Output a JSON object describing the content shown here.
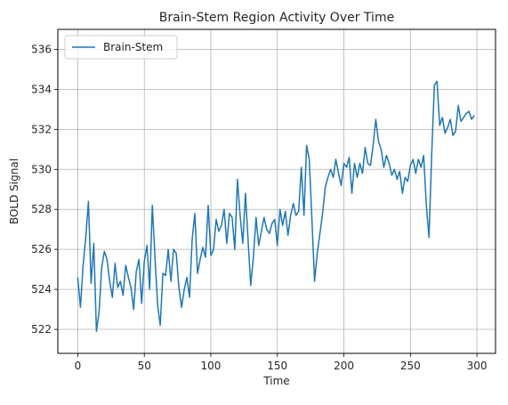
{
  "chart_data": {
    "type": "line",
    "title": "Brain-Stem Region Activity Over Time",
    "xlabel": "Time",
    "ylabel": "BOLD Signal",
    "xlim": [
      -15,
      314
    ],
    "ylim": [
      520.8,
      537.0
    ],
    "xticks": [
      0,
      50,
      100,
      150,
      200,
      250,
      300
    ],
    "yticks": [
      522,
      524,
      526,
      528,
      530,
      532,
      534,
      536
    ],
    "grid": true,
    "legend_position": "top-left",
    "series": [
      {
        "name": "Brain-Stem",
        "color": "#1f77b4",
        "x": [
          0,
          2,
          4,
          6,
          8,
          10,
          12,
          14,
          16,
          18,
          20,
          22,
          24,
          26,
          28,
          30,
          32,
          34,
          36,
          38,
          40,
          42,
          44,
          46,
          48,
          50,
          52,
          54,
          56,
          58,
          60,
          62,
          64,
          66,
          68,
          70,
          72,
          74,
          76,
          78,
          80,
          82,
          84,
          86,
          88,
          90,
          92,
          94,
          96,
          98,
          100,
          102,
          104,
          106,
          108,
          110,
          112,
          114,
          116,
          118,
          120,
          122,
          124,
          126,
          128,
          130,
          132,
          134,
          136,
          138,
          140,
          142,
          144,
          146,
          148,
          150,
          152,
          154,
          156,
          158,
          160,
          162,
          164,
          166,
          168,
          170,
          172,
          174,
          176,
          178,
          180,
          182,
          184,
          186,
          188,
          190,
          192,
          194,
          196,
          198,
          200,
          202,
          204,
          206,
          208,
          210,
          212,
          214,
          216,
          218,
          220,
          222,
          224,
          226,
          228,
          230,
          232,
          234,
          236,
          238,
          240,
          242,
          244,
          246,
          248,
          250,
          252,
          254,
          256,
          258,
          260,
          262,
          264,
          266,
          268,
          270,
          272,
          274,
          276,
          278,
          280,
          282,
          284,
          286,
          288,
          290,
          292,
          294,
          296,
          298
        ],
        "y": [
          524.6,
          523.1,
          525.2,
          526.6,
          528.4,
          524.3,
          526.3,
          521.9,
          522.9,
          525.1,
          525.9,
          525.5,
          524.4,
          523.6,
          525.3,
          524.1,
          524.4,
          523.7,
          525.2,
          524.6,
          524.1,
          523.0,
          524.9,
          525.5,
          523.3,
          525.4,
          526.2,
          524.0,
          528.2,
          525.6,
          523.2,
          522.2,
          524.8,
          524.7,
          526.0,
          524.4,
          526.0,
          525.8,
          524.1,
          523.1,
          524.0,
          524.6,
          523.6,
          526.5,
          527.8,
          524.8,
          525.5,
          526.1,
          525.6,
          528.2,
          525.7,
          526.0,
          527.5,
          526.9,
          527.2,
          528.0,
          526.3,
          527.8,
          527.6,
          526.0,
          529.5,
          527.7,
          526.3,
          528.8,
          526.5,
          524.2,
          525.6,
          527.6,
          526.2,
          526.9,
          527.6,
          527.0,
          526.8,
          527.3,
          527.5,
          526.2,
          528.0,
          527.2,
          527.9,
          526.7,
          527.7,
          528.3,
          527.7,
          527.9,
          530.1,
          527.7,
          531.2,
          530.5,
          527.5,
          524.4,
          525.8,
          526.8,
          527.8,
          529.1,
          529.6,
          530.0,
          529.6,
          530.5,
          529.8,
          529.2,
          530.3,
          530.1,
          530.6,
          528.8,
          530.3,
          529.6,
          530.3,
          529.8,
          531.1,
          530.3,
          530.2,
          531.2,
          532.5,
          531.4,
          531.0,
          530.1,
          530.7,
          530.3,
          529.7,
          530.0,
          529.5,
          529.9,
          528.8,
          529.6,
          529.4,
          530.2,
          530.5,
          529.8,
          530.5,
          530.1,
          530.7,
          528.2,
          526.6,
          530.7,
          534.2,
          534.4,
          532.2,
          532.6,
          531.8,
          532.1,
          532.5,
          531.7,
          531.9,
          533.2,
          532.4,
          532.6,
          532.8,
          532.9,
          532.5,
          532.7
        ]
      }
    ]
  }
}
